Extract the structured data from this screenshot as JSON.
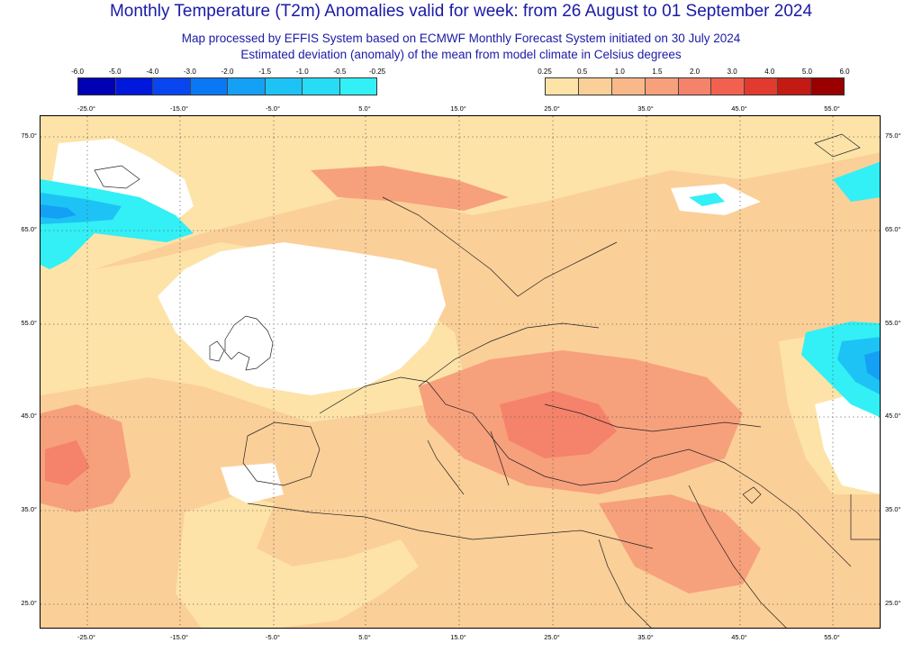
{
  "title": "Monthly Temperature (T2m) Anomalies valid for week: from 26 August to 01 September 2024",
  "subtitle1": "Map processed by EFFIS System based on ECMWF Monthly Forecast System initiated on 30 July 2024",
  "subtitle2": "Estimated deviation (anomaly) of the mean from model climate in Celsius degrees",
  "legend_cold": {
    "ticks": [
      "-6.0",
      "-5.0",
      "-4.0",
      "-3.0",
      "-2.0",
      "-1.5",
      "-1.0",
      "-0.5",
      "-0.25"
    ],
    "colors": [
      "#0000b4",
      "#0018dc",
      "#0a46f0",
      "#0a78f5",
      "#14a0f5",
      "#1ec3f5",
      "#28dcf5",
      "#32f0f5"
    ]
  },
  "legend_warm": {
    "ticks": [
      "0.25",
      "0.5",
      "1.0",
      "1.5",
      "2.0",
      "3.0",
      "4.0",
      "5.0",
      "6.0"
    ],
    "colors": [
      "#fde3a8",
      "#fbcf98",
      "#f9b88a",
      "#f7a07c",
      "#f5826a",
      "#f2614f",
      "#e23a2e",
      "#c41a14",
      "#9a0000"
    ]
  },
  "axes": {
    "lon_labels": [
      "-25.0°",
      "-15.0°",
      "-5.0°",
      "5.0°",
      "15.0°",
      "25.0°",
      "35.0°",
      "45.0°",
      "55.0°"
    ],
    "lat_labels": [
      "75.0°",
      "65.0°",
      "55.0°",
      "45.0°",
      "35.0°",
      "25.0°"
    ]
  },
  "map_colors": {
    "white": "#ffffff",
    "pale": "#fde3a8",
    "light": "#fbcf98",
    "mid": "#f9b88a",
    "warm": "#f7a07c",
    "hot": "#f5826a",
    "cyan1": "#32f0f5",
    "cyan2": "#1ec3f5",
    "cyan3": "#14a0f5",
    "blue": "#0a78f5",
    "coast": "#222222"
  }
}
